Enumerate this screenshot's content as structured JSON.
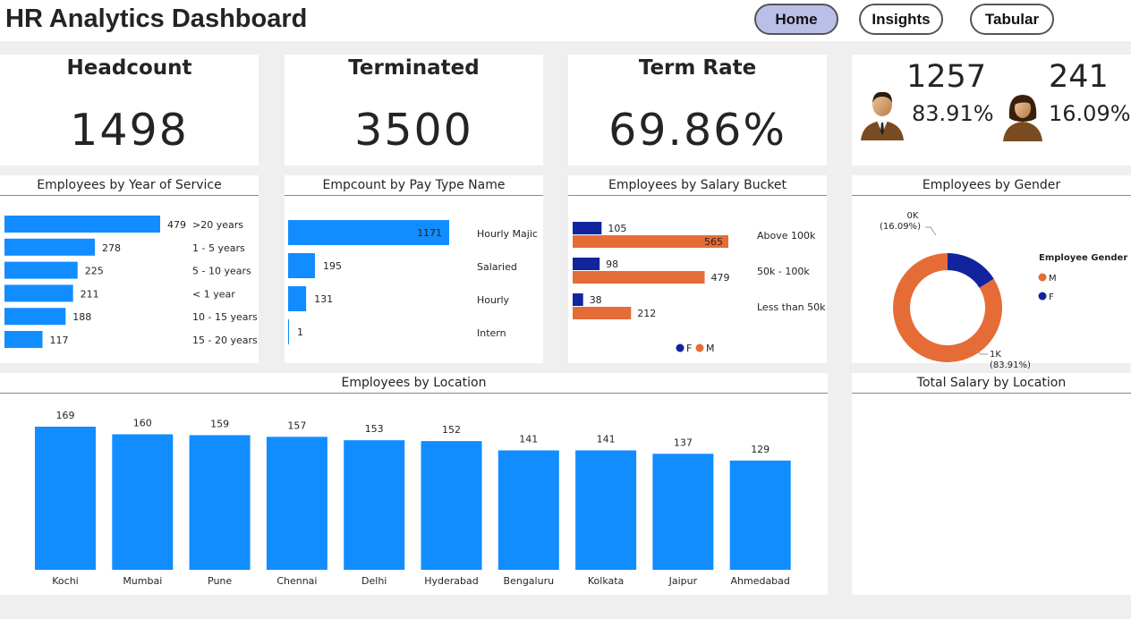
{
  "header": {
    "title": "HR Analytics Dashboard",
    "nav": [
      {
        "label": "Home",
        "active": true
      },
      {
        "label": "Insights",
        "active": false
      },
      {
        "label": "Tabular",
        "active": false
      }
    ]
  },
  "kpis": [
    {
      "label": "Headcount",
      "value": "1498"
    },
    {
      "label": "Terminated",
      "value": "3500"
    },
    {
      "label": "Term Rate",
      "value": "69.86%"
    }
  ],
  "gender_summary": {
    "male": {
      "count": "1257",
      "percent": "83.91%",
      "icon": "male-user-icon"
    },
    "female": {
      "count": "241",
      "percent": "16.09%",
      "icon": "female-user-icon"
    }
  },
  "colors": {
    "accent_blue": "#118dff",
    "female_navy": "#12239e",
    "male_orange": "#e66c37",
    "nav_active": "#b9bfe6"
  },
  "chart_data": [
    {
      "type": "bar",
      "orientation": "horizontal",
      "title": "Employees by Year of Service",
      "categories": [
        ">20 years",
        "1 - 5 years",
        "5 - 10 years",
        "< 1 year",
        "10 - 15 years",
        "15 - 20 years"
      ],
      "values": [
        479,
        278,
        225,
        211,
        188,
        117
      ]
    },
    {
      "type": "bar",
      "orientation": "horizontal",
      "title": "Empcount by Pay Type Name",
      "categories": [
        "Hourly Majic",
        "Salaried",
        "Hourly",
        "Intern"
      ],
      "values": [
        1171,
        195,
        131,
        1
      ]
    },
    {
      "type": "bar",
      "orientation": "horizontal",
      "title": "Employees by Salary Bucket",
      "categories": [
        "Above 100k",
        "50k - 100k",
        "Less than 50k"
      ],
      "series": [
        {
          "name": "F",
          "values": [
            105,
            98,
            38
          ]
        },
        {
          "name": "M",
          "values": [
            565,
            479,
            212
          ]
        }
      ],
      "legend": "bottom"
    },
    {
      "type": "pie",
      "variant": "donut",
      "title": "Employees by Gender",
      "legend_title": "Employee Gender",
      "legend": "right",
      "slices": [
        {
          "name": "M",
          "value": 1257,
          "label": "1K",
          "percent_label": "(83.91%)"
        },
        {
          "name": "F",
          "value": 241,
          "label": "0K",
          "percent_label": "(16.09%)"
        }
      ]
    },
    {
      "type": "bar",
      "orientation": "vertical",
      "title": "Employees by Location",
      "categories": [
        "Kochi",
        "Mumbai",
        "Pune",
        "Chennai",
        "Delhi",
        "Hyderabad",
        "Bengaluru",
        "Kolkata",
        "Jaipur",
        "Ahmedabad"
      ],
      "values": [
        169,
        160,
        159,
        157,
        153,
        152,
        141,
        141,
        137,
        129
      ]
    },
    {
      "type": "bar",
      "title": "Total Salary by Location",
      "categories": [],
      "values": []
    }
  ]
}
